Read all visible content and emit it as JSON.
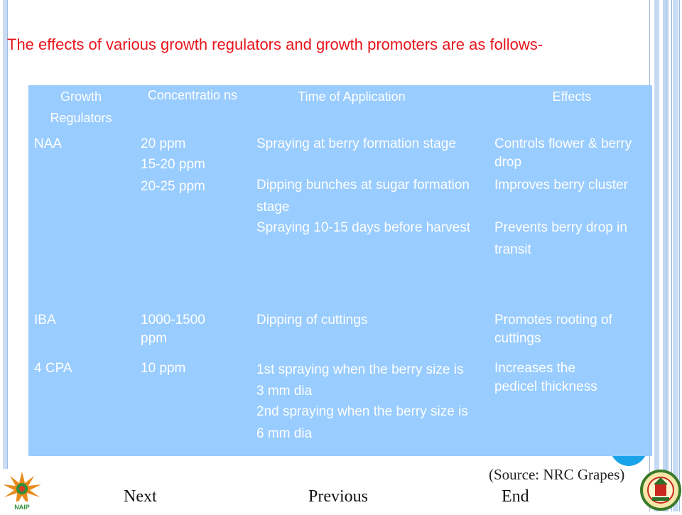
{
  "slide": {
    "title": "The effects of various growth regulators and growth promoters are as follows-",
    "source": "(Source: NRC Grapes)",
    "colors": {
      "title": "#e8141c",
      "table_bg": "#99ccff",
      "table_text": "#ffffff"
    }
  },
  "table": {
    "headers": [
      "Growth Regulators",
      "Concentratio ns",
      "Time of Application",
      "Effects"
    ],
    "rows": [
      {
        "regulator": "NAA",
        "concentration": [
          "20 ppm",
          "15-20 ppm",
          "20-25 ppm"
        ],
        "time": [
          "Spraying at berry formation stage",
          "Dipping bunches at sugar formation stage",
          "Spraying 10-15 days before harvest"
        ],
        "effects": [
          "Controls flower & berry drop",
          "Improves berry cluster",
          "Prevents berry drop in transit"
        ]
      },
      {
        "regulator": "IBA",
        "concentration": [
          "1000-1500 ppm"
        ],
        "time": [
          "Dipping of cuttings"
        ],
        "effects": [
          "Promotes rooting of cuttings"
        ]
      },
      {
        "regulator": "4 CPA",
        "concentration": [
          "10 ppm"
        ],
        "time": [
          "1st spraying when the berry size is 3 mm dia",
          "2nd spraying when the berry size is 6 mm dia"
        ],
        "effects": [
          "Increases the pedicel thickness"
        ]
      }
    ]
  },
  "nav": {
    "next": "Next",
    "previous": "Previous",
    "end": "End"
  },
  "logos": {
    "left": "naip-logo-icon",
    "right": "university-emblem-icon"
  }
}
